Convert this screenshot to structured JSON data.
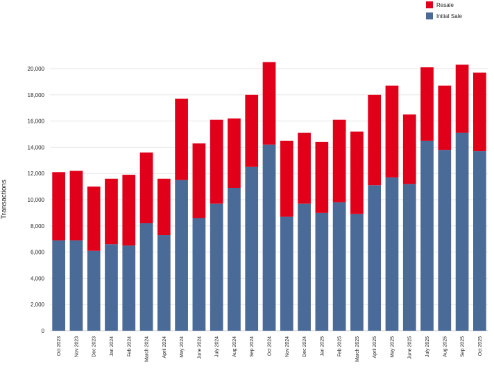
{
  "chart_data": {
    "type": "bar",
    "stacked": true,
    "title": "",
    "xlabel": "",
    "ylabel": "Transactions",
    "ylim": [
      0,
      20000
    ],
    "yticks": [
      0,
      2000,
      4000,
      6000,
      8000,
      10000,
      12000,
      14000,
      16000,
      18000,
      20000
    ],
    "ytick_labels": [
      "0",
      "2,000",
      "4,000",
      "6,000",
      "8,000",
      "10,000",
      "12,000",
      "14,000",
      "16,000",
      "18,000",
      "20,000"
    ],
    "grid": true,
    "legend_position": "top-right",
    "categories": [
      "Oct 2023",
      "Nov 2023",
      "Dec 2023",
      "Jan 2024",
      "Feb 2024",
      "March 2024",
      "April 2024",
      "May 2024",
      "June 2024",
      "July 2024",
      "Aug 2024",
      "Sep 2024",
      "Oct 2024",
      "Nov 2024",
      "Dec 2024",
      "Jan 2025",
      "Feb 2025",
      "March 2025",
      "April 2025",
      "May 2025",
      "June 2025",
      "July 2025",
      "Aug 2025",
      "Sep 2025",
      "Oct 2025"
    ],
    "series": [
      {
        "name": "Initial Sale",
        "color": "#4a6a98",
        "values": [
          6900,
          6900,
          6100,
          6600,
          6500,
          8200,
          7300,
          11500,
          8600,
          9700,
          10900,
          12500,
          14200,
          8700,
          9700,
          9000,
          9800,
          8900,
          11100,
          11700,
          11200,
          14500,
          13800,
          15100,
          13700
        ]
      },
      {
        "name": "Resale",
        "color": "#e0001a",
        "values": [
          5200,
          5300,
          4900,
          5000,
          5400,
          5400,
          4300,
          6200,
          5700,
          6400,
          5300,
          5500,
          6300,
          5800,
          5400,
          5400,
          6300,
          6300,
          6900,
          7000,
          5300,
          5600,
          4900,
          5200,
          6000
        ]
      }
    ]
  }
}
